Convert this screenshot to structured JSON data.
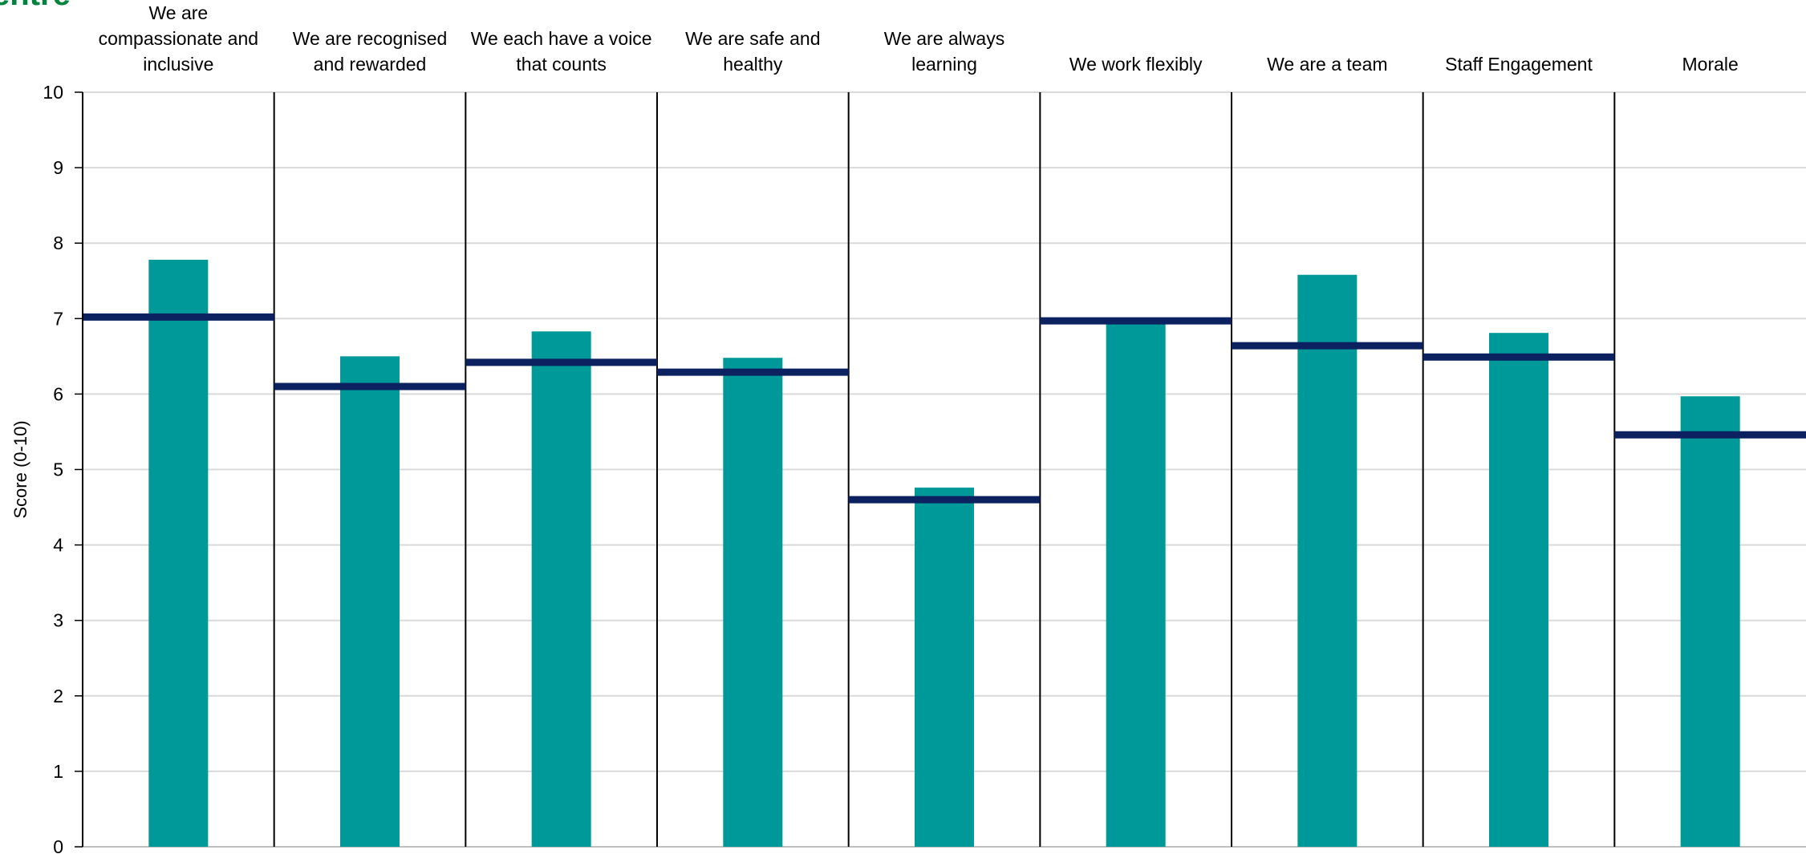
{
  "brand_fragment": "entre",
  "colors": {
    "bar": "#009999",
    "benchmark": "#0b2160",
    "brand": "#00843d",
    "grid": "#d9d9d9",
    "divider": "#000000"
  },
  "chart_data": {
    "type": "bar",
    "categories": [
      [
        "We are",
        "compassionate and",
        "inclusive"
      ],
      [
        "We are recognised",
        "and rewarded"
      ],
      [
        "We each have a voice",
        "that counts"
      ],
      [
        "We are safe and",
        "healthy"
      ],
      [
        "We are always",
        "learning"
      ],
      [
        "We work flexibly"
      ],
      [
        "We are a team"
      ],
      [
        "Staff Engagement"
      ],
      [
        "Morale"
      ]
    ],
    "series": [
      {
        "values": [
          7.78,
          6.5,
          6.83,
          6.48,
          4.76,
          6.95,
          7.58,
          6.81,
          5.97
        ]
      },
      {
        "values": [
          7.02,
          6.1,
          6.42,
          6.29,
          4.6,
          6.97,
          6.64,
          6.49,
          5.46
        ]
      }
    ],
    "ylabel": "Score (0-10)",
    "ylim": [
      0,
      10
    ],
    "yticks": [
      "0",
      "1",
      "2",
      "3",
      "4",
      "5",
      "6",
      "7",
      "8",
      "9",
      "10"
    ],
    "grid": true
  }
}
